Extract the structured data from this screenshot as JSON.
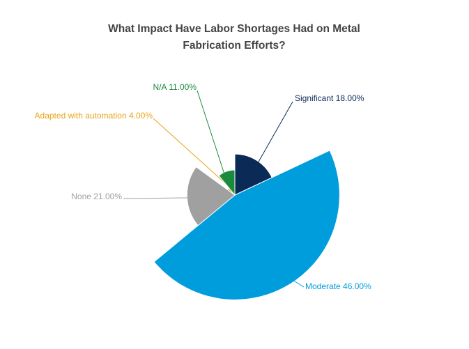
{
  "chart_data": {
    "type": "pie",
    "radius_by_value": true,
    "title": "What Impact Have Labor Shortages Had on Metal Fabrication Efforts?",
    "categories": [
      "Significant",
      "Moderate",
      "None",
      "Adapted with automation",
      "N/A"
    ],
    "values": [
      18,
      46,
      21,
      4,
      11
    ],
    "value_labels": [
      "18.00%",
      "46.00%",
      "21.00%",
      "4.00%",
      "11.00%"
    ],
    "colors": [
      "#0b2a55",
      "#009ddc",
      "#a0a0a0",
      "#e8a317",
      "#1a8a3c"
    ]
  }
}
